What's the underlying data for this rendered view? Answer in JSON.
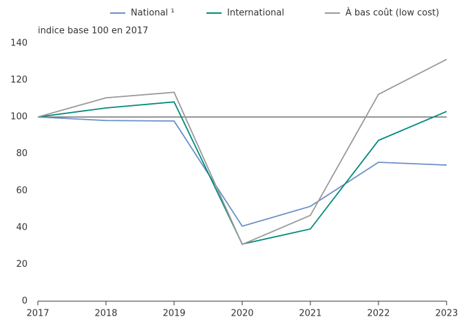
{
  "chart_data": {
    "type": "line",
    "y_axis_label": "indice base 100 en 2017",
    "x": [
      2017,
      2018,
      2019,
      2020,
      2021,
      2022,
      2023
    ],
    "xlim": [
      2017,
      2023
    ],
    "xticks": [
      2017,
      2018,
      2019,
      2020,
      2021,
      2022,
      2023
    ],
    "ylim": [
      0,
      140
    ],
    "yticks": [
      0,
      20,
      40,
      60,
      80,
      100,
      120,
      140
    ],
    "reference_line": 100,
    "legend": "top",
    "series": [
      {
        "name": "National ¹",
        "color": "#6a8fc7",
        "values": [
          100,
          98.1,
          97.8,
          40.7,
          51.5,
          75.4,
          73.9
        ]
      },
      {
        "name": "International",
        "color": "#008a7a",
        "values": [
          100,
          104.9,
          108.2,
          31,
          39.2,
          87.3,
          103
        ]
      },
      {
        "name": "À bas coût (low cost)",
        "color": "#999999",
        "values": [
          100,
          110.4,
          113.4,
          30.8,
          46.6,
          112.3,
          131.3
        ]
      }
    ]
  }
}
